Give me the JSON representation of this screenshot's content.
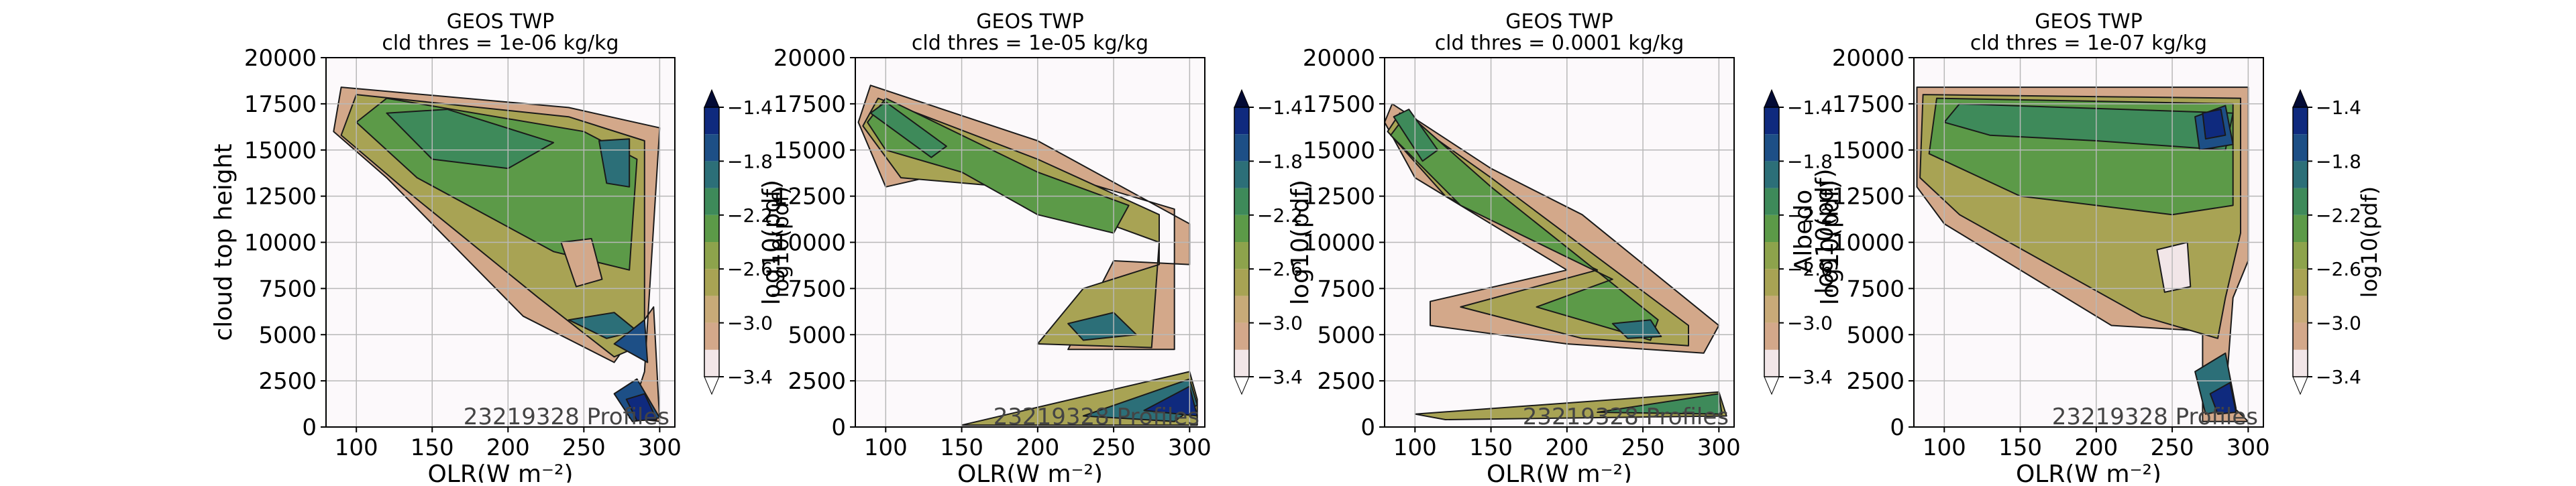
{
  "palette": {
    "levels": [
      "#f2e6e8",
      "#d3a88a",
      "#c8aa78",
      "#a8a354",
      "#8da34c",
      "#5c9a48",
      "#3e8a5a",
      "#2c6f78",
      "#1d4f86",
      "#0f2a7e",
      "#030b35"
    ],
    "background_low": "#fcf9fb",
    "line": "#1a1a1a",
    "grid": "#b8b8b8"
  },
  "chart_data": [
    {
      "type": "heatmap",
      "title": "GEOS TWP",
      "subtitle": "cld thres = 1e-06 kg/kg",
      "xlabel": "OLR(W m⁻²)",
      "ylabel": "cloud top height",
      "xlim": [
        80,
        310
      ],
      "ylim": [
        0,
        20000
      ],
      "xticks": [
        "100",
        "150",
        "200",
        "250",
        "300"
      ],
      "yticks": [
        "0",
        "2500",
        "5000",
        "7500",
        "10000",
        "12500",
        "15000",
        "17500",
        "20000"
      ],
      "colorbar_label": "log10(pdf)",
      "colorbar_ticks": [
        "-1.4",
        "-1.8",
        "-2.2",
        "-2.6",
        "-3.0",
        "-3.4"
      ],
      "colorbar_tick_labels": [
        "−1.4",
        "−1.8",
        "−2.2",
        "−2.6",
        "−3.0",
        "−3.4"
      ],
      "colorbar_range": [
        -3.4,
        -1.4
      ],
      "profiles_label": "23219328 Profiles",
      "grid": true
    },
    {
      "type": "heatmap",
      "title": "GEOS TWP",
      "subtitle": "cld thres = 1e-05 kg/kg",
      "xlabel": "OLR(W m⁻²)",
      "ylabel": "log10(pdf)",
      "xlim": [
        80,
        310
      ],
      "ylim": [
        0,
        20000
      ],
      "xticks": [
        "100",
        "150",
        "200",
        "250",
        "300"
      ],
      "yticks": [
        "0",
        "2500",
        "5000",
        "7500",
        "10000",
        "12500",
        "15000",
        "17500",
        "20000"
      ],
      "colorbar_label": "",
      "colorbar_ticks": [
        "-1.4",
        "-1.8",
        "-2.2",
        "-2.6",
        "-3.0",
        "-3.4"
      ],
      "colorbar_tick_labels": [
        "−1.4",
        "−1.8",
        "−2.2",
        "−2.6",
        "−3.0",
        "−3.4"
      ],
      "colorbar_range": [
        -3.4,
        -1.4
      ],
      "profiles_label": "23219328 Profiles",
      "grid": true
    },
    {
      "type": "heatmap",
      "title": "GEOS TWP",
      "subtitle": "cld thres = 0.0001 kg/kg",
      "xlabel": "OLR(W m⁻²)",
      "ylabel": "log10(pdf)",
      "xlim": [
        80,
        310
      ],
      "ylim": [
        0,
        20000
      ],
      "xticks": [
        "100",
        "150",
        "200",
        "250",
        "300"
      ],
      "yticks": [
        "0",
        "2500",
        "5000",
        "7500",
        "10000",
        "12500",
        "15000",
        "17500",
        "20000"
      ],
      "colorbar_label": "",
      "colorbar_ticks": [
        "-1.4",
        "-1.8",
        "-2.2",
        "-2.6",
        "-3.0",
        "-3.4"
      ],
      "colorbar_tick_labels": [
        "−1.4",
        "−1.8",
        "−2.2",
        "−2.6",
        "−3.0",
        "−3.4"
      ],
      "colorbar_range": [
        -3.4,
        -1.4
      ],
      "profiles_label": "23219328 Profiles",
      "grid": true
    },
    {
      "type": "heatmap",
      "title": "GEOS TWP",
      "subtitle": "cld thres = 1e-07 kg/kg",
      "xlabel": "OLR(W m⁻²)",
      "ylabel": "log10(pdf)",
      "overlap_labels": [
        "Albedo",
        "log10(pdf)"
      ],
      "xlim": [
        80,
        310
      ],
      "ylim": [
        0,
        20000
      ],
      "xticks": [
        "100",
        "150",
        "200",
        "250",
        "300"
      ],
      "yticks": [
        "0",
        "2500",
        "5000",
        "7500",
        "10000",
        "12500",
        "15000",
        "17500",
        "20000"
      ],
      "colorbar_label": "log10(pdf)",
      "colorbar_ticks": [
        "-1.4",
        "-1.8",
        "-2.2",
        "-2.6",
        "-3.0",
        "-3.4"
      ],
      "colorbar_tick_labels": [
        "−1.4",
        "−1.8",
        "−2.2",
        "−2.6",
        "−3.0",
        "−3.4"
      ],
      "colorbar_range": [
        -3.4,
        -1.4
      ],
      "profiles_label": "23219328 Profiles",
      "grid": true
    }
  ]
}
